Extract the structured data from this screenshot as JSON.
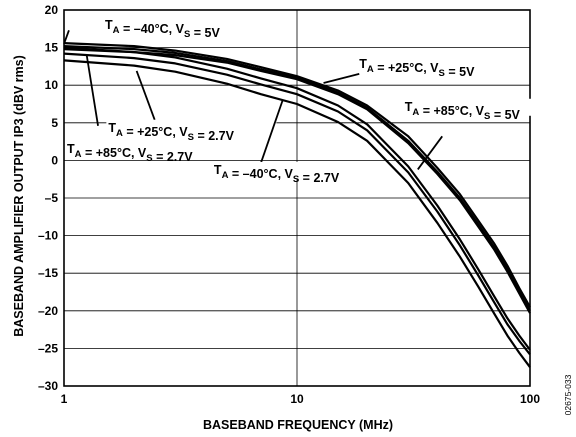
{
  "figure_id": "02675-033",
  "chart_data": {
    "type": "line",
    "xlabel": "BASEBAND FREQUENCY (MHz)",
    "ylabel": "BASEBAND AMPLIFIER OUTPUT IP3 (dBV rms)",
    "x_scale": "log",
    "xlim": [
      1,
      100
    ],
    "ylim": [
      -30,
      20
    ],
    "x_ticks": [
      1,
      10,
      100
    ],
    "y_ticks": [
      20,
      15,
      10,
      5,
      0,
      -5,
      -10,
      -15,
      -20,
      -25,
      -30
    ],
    "grid": true,
    "legend": "none",
    "series": [
      {
        "name": "TA = –40°C, VS = 5V",
        "points": [
          [
            1,
            15.6
          ],
          [
            2,
            15.2
          ],
          [
            3,
            14.6
          ],
          [
            5,
            13.5
          ],
          [
            7,
            12.4
          ],
          [
            10,
            11.2
          ],
          [
            15,
            9.3
          ],
          [
            20,
            7.3
          ],
          [
            30,
            3.2
          ],
          [
            40,
            -1
          ],
          [
            50,
            -4.5
          ],
          [
            60,
            -8
          ],
          [
            70,
            -11
          ],
          [
            80,
            -14
          ],
          [
            90,
            -17
          ],
          [
            100,
            -19.5
          ]
        ]
      },
      {
        "name": "TA = +25°C, VS = 5V",
        "points": [
          [
            1,
            15.2
          ],
          [
            2,
            14.8
          ],
          [
            3,
            14.3
          ],
          [
            5,
            13.2
          ],
          [
            7,
            12.1
          ],
          [
            10,
            11.0
          ],
          [
            15,
            9.0
          ],
          [
            20,
            7.0
          ],
          [
            30,
            2.6
          ],
          [
            40,
            -1.5
          ],
          [
            50,
            -5
          ],
          [
            60,
            -8.5
          ],
          [
            70,
            -11.5
          ],
          [
            80,
            -14.5
          ],
          [
            90,
            -17.5
          ],
          [
            100,
            -20
          ]
        ]
      },
      {
        "name": "TA = +85°C, VS = 5V",
        "points": [
          [
            1,
            14.8
          ],
          [
            2,
            14.4
          ],
          [
            3,
            14.0
          ],
          [
            5,
            13.0
          ],
          [
            7,
            11.9
          ],
          [
            10,
            10.8
          ],
          [
            15,
            8.8
          ],
          [
            20,
            6.8
          ],
          [
            30,
            2.3
          ],
          [
            40,
            -1.8
          ],
          [
            50,
            -5.3
          ],
          [
            60,
            -8.8
          ],
          [
            70,
            -11.8
          ],
          [
            80,
            -14.8
          ],
          [
            90,
            -17.7
          ],
          [
            100,
            -20.3
          ]
        ]
      },
      {
        "name": "TA = –40°C, VS = 2.7V",
        "points": [
          [
            1,
            15.0
          ],
          [
            2,
            14.4
          ],
          [
            3,
            13.7
          ],
          [
            5,
            12.2
          ],
          [
            7,
            10.9
          ],
          [
            10,
            9.6
          ],
          [
            15,
            7.3
          ],
          [
            20,
            4.8
          ],
          [
            30,
            -0.8
          ],
          [
            40,
            -6
          ],
          [
            50,
            -10.5
          ],
          [
            60,
            -14.5
          ],
          [
            70,
            -18
          ],
          [
            80,
            -21
          ],
          [
            90,
            -23.3
          ],
          [
            100,
            -25.2
          ]
        ]
      },
      {
        "name": "TA = +25°C, VS = 2.7V",
        "points": [
          [
            1,
            14.2
          ],
          [
            2,
            13.6
          ],
          [
            3,
            12.9
          ],
          [
            5,
            11.4
          ],
          [
            7,
            10.1
          ],
          [
            10,
            8.8
          ],
          [
            15,
            6.5
          ],
          [
            20,
            4.0
          ],
          [
            30,
            -1.6
          ],
          [
            40,
            -6.8
          ],
          [
            50,
            -11.3
          ],
          [
            60,
            -15.3
          ],
          [
            70,
            -18.8
          ],
          [
            80,
            -21.8
          ],
          [
            90,
            -24
          ],
          [
            100,
            -25.8
          ]
        ]
      },
      {
        "name": "TA = +85°C, VS = 2.7V",
        "points": [
          [
            1,
            13.3
          ],
          [
            2,
            12.6
          ],
          [
            3,
            11.8
          ],
          [
            5,
            10.2
          ],
          [
            7,
            8.8
          ],
          [
            10,
            7.5
          ],
          [
            15,
            5.1
          ],
          [
            20,
            2.6
          ],
          [
            30,
            -3
          ],
          [
            40,
            -8.3
          ],
          [
            50,
            -12.8
          ],
          [
            60,
            -16.8
          ],
          [
            70,
            -20.3
          ],
          [
            80,
            -23.3
          ],
          [
            90,
            -25.6
          ],
          [
            100,
            -27.5
          ]
        ]
      }
    ],
    "annotations": [
      {
        "main": "T",
        "sub1": "A",
        "mid": " = –40°C, V",
        "sub2": "S",
        "tail": " = 5V",
        "x": 1.5,
        "y": 17.5,
        "ptr": [
          1.05,
          17.3
        ],
        "ptr_to": [
          1,
          15.5
        ]
      },
      {
        "main": "T",
        "sub1": "A",
        "mid": " = +25°C, V",
        "sub2": "S",
        "tail": " = 5V",
        "x": 18.5,
        "y": 12.3,
        "ptr": [
          18.5,
          11.5
        ],
        "ptr_to": [
          13,
          10.3
        ]
      },
      {
        "main": "T",
        "sub1": "A",
        "mid": " = +85°C, V",
        "sub2": "S",
        "tail": " = 5V",
        "x": 29,
        "y": 6.6,
        "ptr": [
          42,
          3.2
        ],
        "ptr_to": [
          33,
          -1.2
        ]
      },
      {
        "main": "T",
        "sub1": "A",
        "mid": " = +25°C, V",
        "sub2": "S",
        "tail": " = 2.7V",
        "x": 1.55,
        "y": 3.8,
        "ptr": [
          2.45,
          5.4
        ],
        "ptr_to": [
          2.05,
          11.9
        ]
      },
      {
        "main": "T",
        "sub1": "A",
        "mid": " = +85°C, V",
        "sub2": "S",
        "tail": " = 2.7V",
        "x": 1.03,
        "y": 1.0,
        "ptr": [
          1.4,
          4.6
        ],
        "ptr_to": [
          1.25,
          14.1
        ]
      },
      {
        "main": "T",
        "sub1": "A",
        "mid": " = –40°C, V",
        "sub2": "S",
        "tail": " = 2.7V",
        "x": 4.4,
        "y": -1.8,
        "ptr": [
          6.9,
          -0.9
        ],
        "ptr_to": [
          8.7,
          8.1
        ]
      }
    ]
  }
}
